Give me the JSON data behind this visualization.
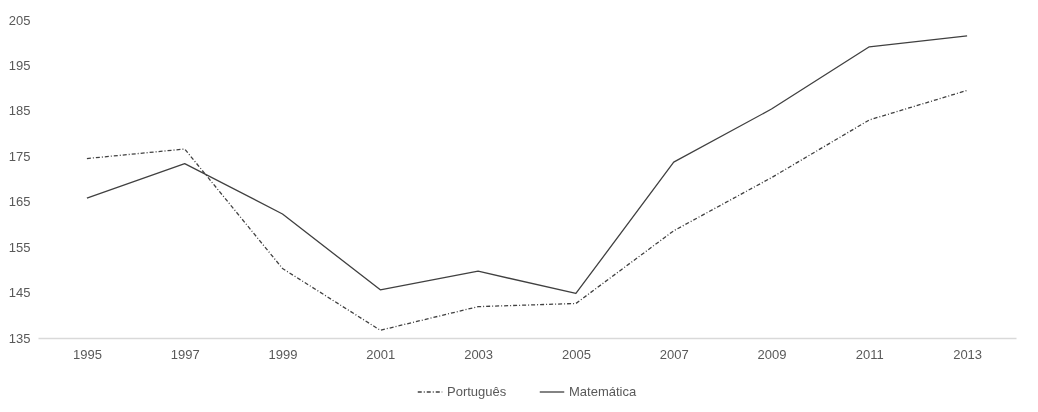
{
  "chart_data": {
    "type": "line",
    "categories": [
      "1995",
      "1997",
      "1999",
      "2001",
      "2003",
      "2005",
      "2007",
      "2009",
      "2011",
      "2013"
    ],
    "series": [
      {
        "name": "Português",
        "color": "#404040",
        "line_style": "dashed",
        "values": [
          174.5,
          176.6,
          150.3,
          136.7,
          141.9,
          142.6,
          158.6,
          170.3,
          183.0,
          189.5
        ]
      },
      {
        "name": "Matemática",
        "color": "#404040",
        "line_style": "solid",
        "values": [
          165.8,
          173.4,
          162.3,
          145.6,
          149.7,
          144.8,
          173.7,
          185.4,
          199.1,
          201.5
        ]
      }
    ],
    "ylim": [
      135,
      205
    ],
    "yticks": [
      135,
      145,
      155,
      165,
      175,
      185,
      195,
      205
    ],
    "grid": false,
    "legend": "bottom",
    "marker": "none"
  }
}
